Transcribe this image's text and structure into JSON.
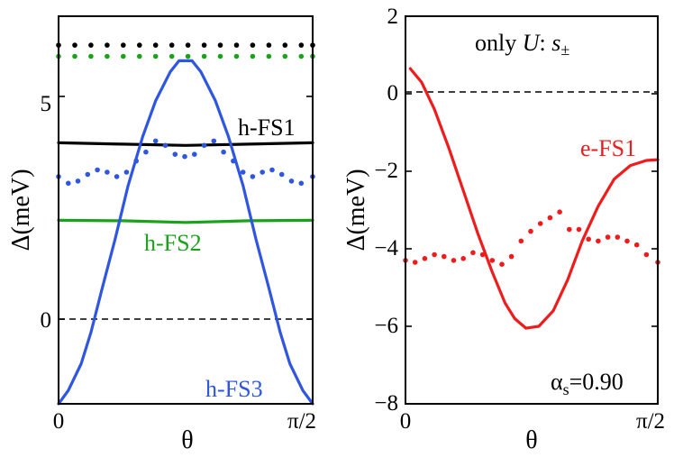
{
  "chart_data": [
    {
      "type": "line",
      "xlabel": "θ",
      "ylabel": "Δ(meV)",
      "xlim": [
        0,
        1.5708
      ],
      "ylim": [
        -1.9,
        6.8
      ],
      "xticks": [
        {
          "value": 0,
          "label": "0"
        },
        {
          "value": 1.5708,
          "label": "π/2"
        }
      ],
      "yticks": [
        {
          "value": 0,
          "label": "0"
        },
        {
          "value": 5,
          "label": "5"
        }
      ],
      "zero_line": true,
      "series": [
        {
          "name": "h-FS1",
          "label": "h-FS1",
          "style": "solid",
          "color": "#000000",
          "x": [
            0,
            0.393,
            0.785,
            1.178,
            1.5708
          ],
          "y": [
            3.96,
            3.93,
            3.9,
            3.93,
            3.96
          ]
        },
        {
          "name": "h-FS2",
          "label": "h-FS2",
          "style": "solid",
          "color": "#1aa31a",
          "x": [
            0,
            0.393,
            0.785,
            1.178,
            1.5708
          ],
          "y": [
            2.22,
            2.21,
            2.17,
            2.21,
            2.22
          ]
        },
        {
          "name": "h-FS3",
          "label": "h-FS3",
          "style": "solid",
          "color": "#2f56e0",
          "x": [
            0,
            0.06,
            0.14,
            0.2,
            0.27,
            0.35,
            0.43,
            0.52,
            0.6,
            0.69,
            0.745,
            0.825,
            0.88,
            0.97,
            1.05,
            1.14,
            1.22,
            1.3,
            1.37,
            1.43,
            1.51,
            1.5708
          ],
          "y": [
            -1.9,
            -1.6,
            -1.0,
            -0.3,
            0.7,
            1.8,
            3.0,
            4.1,
            4.9,
            5.55,
            5.8,
            5.8,
            5.55,
            4.9,
            4.1,
            3.0,
            1.8,
            0.7,
            -0.3,
            -1.0,
            -1.6,
            -1.9
          ]
        },
        {
          "name": "h-FS3 (dotted)",
          "style": "dotted",
          "color": "#2f56e0",
          "x": [
            0,
            0.06,
            0.12,
            0.18,
            0.24,
            0.3,
            0.36,
            0.42,
            0.48,
            0.54,
            0.6,
            0.66,
            0.72,
            0.78,
            0.84,
            0.9,
            0.96,
            1.02,
            1.08,
            1.14,
            1.2,
            1.26,
            1.32,
            1.38,
            1.44,
            1.5,
            1.5708
          ],
          "y": [
            3.2,
            3.05,
            3.1,
            3.25,
            3.35,
            3.3,
            3.2,
            3.3,
            3.55,
            3.75,
            4.0,
            3.9,
            3.7,
            3.65,
            3.7,
            3.9,
            4.0,
            3.75,
            3.55,
            3.3,
            3.2,
            3.3,
            3.35,
            3.25,
            3.1,
            3.05,
            3.2
          ]
        },
        {
          "name": "h-FS1 (dotted)",
          "style": "dotted",
          "color": "#000000",
          "x": [
            0,
            0.1,
            0.2,
            0.3,
            0.4,
            0.5,
            0.6,
            0.7,
            0.8,
            0.9,
            1.0,
            1.1,
            1.2,
            1.3,
            1.4,
            1.5,
            1.5708
          ],
          "y": [
            6.15,
            6.15,
            6.15,
            6.15,
            6.15,
            6.15,
            6.15,
            6.15,
            6.15,
            6.15,
            6.15,
            6.15,
            6.15,
            6.15,
            6.15,
            6.15,
            6.15
          ]
        },
        {
          "name": "h-FS2 (dotted)",
          "style": "dotted",
          "color": "#1aa31a",
          "x": [
            0,
            0.1,
            0.2,
            0.3,
            0.4,
            0.5,
            0.6,
            0.7,
            0.8,
            0.9,
            1.0,
            1.1,
            1.2,
            1.3,
            1.4,
            1.5,
            1.5708
          ],
          "y": [
            5.9,
            5.9,
            5.9,
            5.9,
            5.9,
            5.9,
            5.9,
            5.9,
            5.9,
            5.9,
            5.9,
            5.9,
            5.9,
            5.9,
            5.9,
            5.9,
            5.9
          ]
        }
      ]
    },
    {
      "type": "line",
      "title": "only U: s±",
      "title_parts": {
        "pre": "only ",
        "italic": "U",
        "mid": ": ",
        "italic2": "s",
        "sub": "±"
      },
      "xlabel": "θ",
      "ylabel": "Δ(meV)",
      "xlim": [
        0,
        1.5708
      ],
      "ylim": [
        -8,
        2
      ],
      "xticks": [
        {
          "value": 0,
          "label": "0"
        },
        {
          "value": 1.5708,
          "label": "π/2"
        }
      ],
      "yticks": [
        {
          "value": 2,
          "label": "2"
        },
        {
          "value": 0,
          "label": "0"
        },
        {
          "value": -2,
          "label": "−2"
        },
        {
          "value": -4,
          "label": "−4"
        },
        {
          "value": -6,
          "label": "−6"
        },
        {
          "value": -8,
          "label": "−8"
        }
      ],
      "zero_line": true,
      "annotation": {
        "alpha": "α",
        "sub": "s",
        "value": "=0.90"
      },
      "series": [
        {
          "name": "e-FS1",
          "label": "e-FS1",
          "style": "solid",
          "color": "#ee1c1c",
          "x": [
            0.03,
            0.1,
            0.18,
            0.27,
            0.36,
            0.45,
            0.54,
            0.62,
            0.68,
            0.75,
            0.83,
            0.92,
            1.01,
            1.1,
            1.2,
            1.3,
            1.4,
            1.5,
            1.5708
          ],
          "y": [
            0.65,
            0.3,
            -0.4,
            -1.4,
            -2.5,
            -3.6,
            -4.6,
            -5.4,
            -5.8,
            -6.05,
            -6.0,
            -5.6,
            -4.8,
            -3.8,
            -2.9,
            -2.2,
            -1.85,
            -1.72,
            -1.7
          ]
        },
        {
          "name": "e-FS1 (dotted)",
          "style": "dotted",
          "color": "#ee1c1c",
          "x": [
            0,
            0.06,
            0.12,
            0.18,
            0.24,
            0.3,
            0.36,
            0.42,
            0.48,
            0.54,
            0.6,
            0.66,
            0.72,
            0.78,
            0.84,
            0.9,
            0.96,
            1.02,
            1.08,
            1.14,
            1.2,
            1.26,
            1.32,
            1.38,
            1.44,
            1.5,
            1.5708
          ],
          "y": [
            -4.3,
            -4.35,
            -4.25,
            -4.15,
            -4.2,
            -4.3,
            -4.25,
            -4.1,
            -4.15,
            -4.3,
            -4.4,
            -4.2,
            -3.8,
            -3.55,
            -3.35,
            -3.2,
            -3.05,
            -3.5,
            -3.5,
            -3.75,
            -3.8,
            -3.7,
            -3.7,
            -3.8,
            -3.9,
            -4.15,
            -4.35
          ]
        }
      ]
    }
  ]
}
